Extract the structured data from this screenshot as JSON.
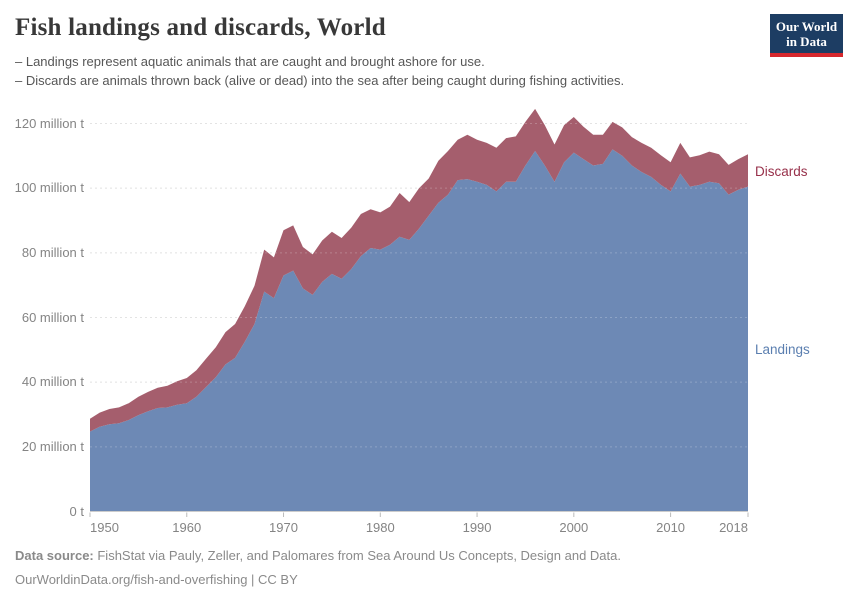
{
  "header": {
    "title": "Fish landings and discards, World",
    "subtitle_lines": [
      "– Landings represent aquatic animals that are caught and brought ashore for use.",
      "– Discards are animals thrown back (alive or dead) into the sea after being caught during fishing activities."
    ],
    "logo": {
      "line1": "Our World",
      "line2": "in Data",
      "bg_color": "#1d3d63",
      "bar_color": "#d7282d"
    }
  },
  "chart_data": {
    "type": "area",
    "stacked": true,
    "x_label": "",
    "y_label": "",
    "xlim": [
      1950,
      2018
    ],
    "ylim": [
      0,
      120
    ],
    "grid": "horizontal-dashed",
    "legend_position": "right-edge-labels",
    "x": [
      1950,
      1951,
      1952,
      1953,
      1954,
      1955,
      1956,
      1957,
      1958,
      1959,
      1960,
      1961,
      1962,
      1963,
      1964,
      1965,
      1966,
      1967,
      1968,
      1969,
      1970,
      1971,
      1972,
      1973,
      1974,
      1975,
      1976,
      1977,
      1978,
      1979,
      1980,
      1981,
      1982,
      1983,
      1984,
      1985,
      1986,
      1987,
      1988,
      1989,
      1990,
      1991,
      1992,
      1993,
      1994,
      1995,
      1996,
      1997,
      1998,
      1999,
      2000,
      2001,
      2002,
      2003,
      2004,
      2005,
      2006,
      2007,
      2008,
      2009,
      2010,
      2011,
      2012,
      2013,
      2014,
      2015,
      2016,
      2017,
      2018
    ],
    "series": [
      {
        "name": "Landings",
        "unit": "million t",
        "fill_color": "#6d89b5",
        "label_color": "#5b7fb0",
        "values": [
          24.7,
          26.2,
          27.0,
          27.3,
          28.3,
          29.8,
          31.0,
          32.0,
          32.2,
          33.0,
          33.5,
          35.5,
          38.5,
          41.5,
          45.5,
          47.5,
          52.5,
          58.0,
          68.0,
          66.0,
          73.0,
          74.5,
          69.0,
          67.0,
          71.0,
          73.5,
          72.0,
          75.0,
          79.0,
          81.5,
          81.0,
          82.5,
          85.0,
          84.0,
          87.5,
          91.5,
          95.5,
          98.0,
          102.5,
          102.8,
          102.0,
          101.0,
          99.0,
          102.0,
          102.0,
          107.0,
          111.5,
          107.0,
          102.0,
          108.0,
          111.0,
          109.0,
          107.0,
          107.5,
          112.0,
          110.0,
          107.0,
          105.0,
          103.5,
          101.0,
          99.0,
          104.5,
          100.5,
          101.0,
          102.0,
          101.5,
          98.0,
          99.5,
          100.5
        ]
      },
      {
        "name": "Discards",
        "unit": "million t",
        "fill_color": "#a55e6d",
        "label_color": "#97304a",
        "values": [
          4.0,
          4.4,
          4.7,
          4.9,
          5.2,
          5.7,
          6.0,
          6.3,
          6.7,
          7.3,
          7.8,
          8.2,
          8.8,
          9.3,
          10.0,
          10.5,
          11.0,
          11.8,
          13.0,
          12.6,
          14.0,
          14.0,
          12.8,
          12.5,
          12.8,
          13.0,
          12.6,
          12.8,
          13.0,
          12.0,
          11.5,
          11.8,
          13.5,
          11.7,
          12.5,
          11.5,
          13.0,
          13.5,
          12.5,
          13.7,
          13.0,
          13.0,
          13.5,
          13.5,
          14.0,
          13.5,
          13.0,
          12.5,
          11.5,
          11.5,
          11.0,
          10.0,
          9.5,
          9.0,
          8.5,
          8.8,
          8.8,
          9.0,
          9.0,
          9.2,
          9.0,
          9.5,
          9.0,
          9.2,
          9.3,
          9.0,
          9.2,
          9.5,
          10.0
        ]
      }
    ],
    "y_ticks": [
      {
        "value": 0,
        "label": "0 t"
      },
      {
        "value": 20,
        "label": "20 million t"
      },
      {
        "value": 40,
        "label": "40 million t"
      },
      {
        "value": 60,
        "label": "60 million t"
      },
      {
        "value": 80,
        "label": "80 million t"
      },
      {
        "value": 100,
        "label": "100 million t"
      },
      {
        "value": 120,
        "label": "120 million t"
      }
    ],
    "x_ticks": [
      1950,
      1960,
      1970,
      1980,
      1990,
      2000,
      2010,
      2018
    ]
  },
  "footer": {
    "datasource_label": "Data source:",
    "datasource_text": " FishStat via Pauly, Zeller, and Palomares from Sea Around Us Concepts, Design and Data.",
    "link_line": "OurWorldinData.org/fish-and-overfishing | CC BY"
  }
}
